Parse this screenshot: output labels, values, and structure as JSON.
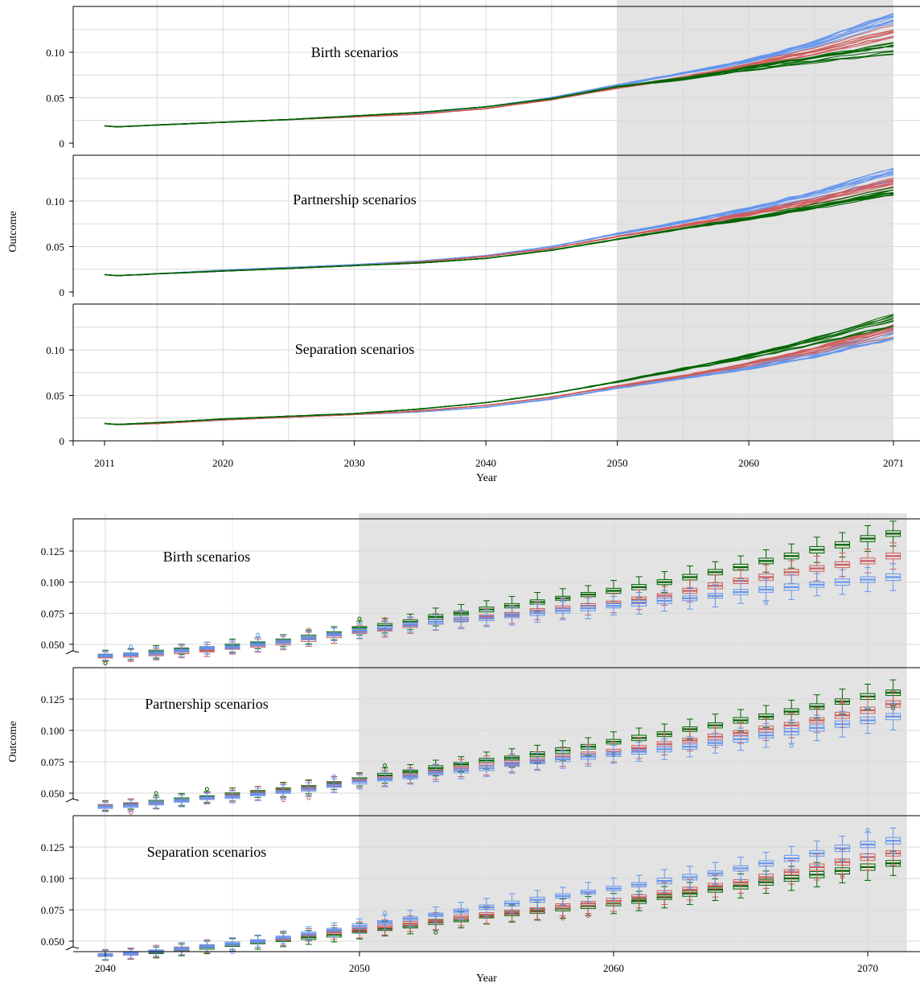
{
  "chart_data": [
    {
      "type": "line",
      "xlabel": "Year",
      "ylabel": "Outcome",
      "xlim": [
        2011,
        2071
      ],
      "x_ticks": [
        "2011",
        "2020",
        "2030",
        "2040",
        "2050",
        "2060",
        "2071"
      ],
      "y_ticks": [
        "0",
        "0.05",
        "0.10"
      ],
      "ylim": [
        0,
        0.14
      ],
      "shaded_region": [
        2050,
        2071
      ],
      "series_colors": {
        "low": "#6495ED",
        "mid": "#CD5C5C",
        "high": "#006400"
      },
      "runs_per_series": 10,
      "panels": [
        {
          "title": "Birth scenarios",
          "x": [
            2011,
            2012,
            2015,
            2020,
            2025,
            2030,
            2035,
            2040,
            2045,
            2050,
            2055,
            2060,
            2065,
            2071
          ],
          "series": [
            {
              "color": "#6495ED",
              "values": [
                0.019,
                0.018,
                0.02,
                0.023,
                0.026,
                0.029,
                0.033,
                0.04,
                0.05,
                0.064,
                0.077,
                0.091,
                0.11,
                0.14
              ]
            },
            {
              "color": "#CD5C5C",
              "values": [
                0.019,
                0.018,
                0.02,
                0.023,
                0.026,
                0.029,
                0.032,
                0.038,
                0.048,
                0.061,
                0.072,
                0.086,
                0.101,
                0.123
              ]
            },
            {
              "color": "#006400",
              "values": [
                0.019,
                0.018,
                0.02,
                0.023,
                0.026,
                0.03,
                0.034,
                0.04,
                0.049,
                0.062,
                0.071,
                0.082,
                0.092,
                0.104
              ]
            }
          ]
        },
        {
          "title": "Partnership scenarios",
          "x": [
            2011,
            2012,
            2015,
            2020,
            2025,
            2030,
            2035,
            2040,
            2045,
            2050,
            2055,
            2060,
            2065,
            2071
          ],
          "series": [
            {
              "color": "#6495ED",
              "values": [
                0.019,
                0.018,
                0.02,
                0.024,
                0.027,
                0.03,
                0.034,
                0.04,
                0.05,
                0.064,
                0.077,
                0.091,
                0.107,
                0.13
              ]
            },
            {
              "color": "#CD5C5C",
              "values": [
                0.019,
                0.018,
                0.02,
                0.023,
                0.026,
                0.029,
                0.033,
                0.039,
                0.048,
                0.061,
                0.073,
                0.086,
                0.1,
                0.121
              ]
            },
            {
              "color": "#006400",
              "values": [
                0.019,
                0.018,
                0.02,
                0.023,
                0.026,
                0.029,
                0.032,
                0.037,
                0.046,
                0.058,
                0.07,
                0.081,
                0.094,
                0.111
              ]
            }
          ]
        },
        {
          "title": "Separation scenarios",
          "x": [
            2011,
            2012,
            2015,
            2020,
            2025,
            2030,
            2035,
            2040,
            2045,
            2050,
            2055,
            2060,
            2065,
            2071
          ],
          "series": [
            {
              "color": "#6495ED",
              "values": [
                0.019,
                0.018,
                0.019,
                0.023,
                0.026,
                0.029,
                0.032,
                0.037,
                0.046,
                0.058,
                0.069,
                0.08,
                0.094,
                0.116
              ]
            },
            {
              "color": "#CD5C5C",
              "values": [
                0.019,
                0.018,
                0.019,
                0.023,
                0.026,
                0.029,
                0.033,
                0.039,
                0.048,
                0.06,
                0.071,
                0.084,
                0.099,
                0.121
              ]
            },
            {
              "color": "#006400",
              "values": [
                0.019,
                0.018,
                0.02,
                0.024,
                0.027,
                0.03,
                0.035,
                0.042,
                0.052,
                0.065,
                0.079,
                0.093,
                0.11,
                0.133
              ]
            }
          ]
        }
      ]
    },
    {
      "type": "box",
      "xlabel": "Year",
      "ylabel": "Outcome",
      "xlim": [
        2040,
        2071
      ],
      "x_ticks": [
        "2040",
        "2050",
        "2060",
        "2070"
      ],
      "y_ticks": [
        "0.050",
        "0.075",
        "0.100",
        "0.125"
      ],
      "ylim": [
        0.045,
        0.145
      ],
      "axis_break": true,
      "shaded_region": [
        2050,
        2071
      ],
      "years": [
        2040,
        2041,
        2042,
        2043,
        2044,
        2045,
        2046,
        2047,
        2048,
        2049,
        2050,
        2051,
        2052,
        2053,
        2054,
        2055,
        2056,
        2057,
        2058,
        2059,
        2060,
        2061,
        2062,
        2063,
        2064,
        2065,
        2066,
        2067,
        2068,
        2069,
        2070,
        2071
      ],
      "panels": [
        {
          "title": "Birth scenarios",
          "series": [
            {
              "color": "#006400",
              "medians": [
                0.041,
                0.042,
                0.044,
                0.046,
                0.047,
                0.049,
                0.051,
                0.053,
                0.056,
                0.059,
                0.063,
                0.065,
                0.068,
                0.072,
                0.075,
                0.078,
                0.081,
                0.084,
                0.087,
                0.09,
                0.093,
                0.096,
                0.1,
                0.104,
                0.108,
                0.112,
                0.117,
                0.121,
                0.126,
                0.13,
                0.135,
                0.139
              ]
            },
            {
              "color": "#CD5C5C",
              "medians": [
                0.04,
                0.041,
                0.042,
                0.044,
                0.045,
                0.047,
                0.049,
                0.051,
                0.054,
                0.057,
                0.06,
                0.062,
                0.065,
                0.068,
                0.07,
                0.072,
                0.074,
                0.077,
                0.079,
                0.081,
                0.083,
                0.086,
                0.089,
                0.093,
                0.097,
                0.101,
                0.104,
                0.108,
                0.111,
                0.114,
                0.117,
                0.121
              ]
            },
            {
              "color": "#6495ED",
              "medians": [
                0.041,
                0.042,
                0.043,
                0.045,
                0.047,
                0.048,
                0.05,
                0.052,
                0.055,
                0.058,
                0.061,
                0.063,
                0.066,
                0.068,
                0.07,
                0.071,
                0.073,
                0.075,
                0.077,
                0.079,
                0.081,
                0.083,
                0.085,
                0.087,
                0.089,
                0.092,
                0.094,
                0.096,
                0.098,
                0.1,
                0.102,
                0.104
              ]
            }
          ]
        },
        {
          "title": "Partnership scenarios",
          "series": [
            {
              "color": "#006400",
              "medians": [
                0.04,
                0.041,
                0.043,
                0.045,
                0.047,
                0.049,
                0.051,
                0.053,
                0.055,
                0.058,
                0.061,
                0.064,
                0.067,
                0.07,
                0.073,
                0.076,
                0.078,
                0.081,
                0.084,
                0.087,
                0.091,
                0.094,
                0.097,
                0.101,
                0.104,
                0.108,
                0.111,
                0.115,
                0.119,
                0.123,
                0.127,
                0.13
              ]
            },
            {
              "color": "#CD5C5C",
              "medians": [
                0.04,
                0.041,
                0.042,
                0.044,
                0.046,
                0.048,
                0.05,
                0.052,
                0.054,
                0.057,
                0.06,
                0.062,
                0.064,
                0.067,
                0.07,
                0.072,
                0.074,
                0.076,
                0.079,
                0.081,
                0.083,
                0.086,
                0.089,
                0.092,
                0.095,
                0.098,
                0.101,
                0.104,
                0.108,
                0.112,
                0.116,
                0.121
              ]
            },
            {
              "color": "#6495ED",
              "medians": [
                0.039,
                0.04,
                0.042,
                0.044,
                0.046,
                0.047,
                0.049,
                0.051,
                0.053,
                0.056,
                0.059,
                0.061,
                0.063,
                0.066,
                0.068,
                0.07,
                0.073,
                0.075,
                0.077,
                0.079,
                0.081,
                0.083,
                0.085,
                0.087,
                0.09,
                0.093,
                0.096,
                0.099,
                0.102,
                0.105,
                0.108,
                0.111
              ]
            }
          ]
        },
        {
          "title": "Separation scenarios",
          "series": [
            {
              "color": "#006400",
              "medians": [
                0.039,
                0.04,
                0.041,
                0.043,
                0.045,
                0.047,
                0.049,
                0.051,
                0.053,
                0.055,
                0.058,
                0.06,
                0.062,
                0.065,
                0.067,
                0.07,
                0.072,
                0.074,
                0.076,
                0.078,
                0.08,
                0.082,
                0.085,
                0.088,
                0.091,
                0.094,
                0.097,
                0.1,
                0.103,
                0.106,
                0.109,
                0.112
              ]
            },
            {
              "color": "#CD5C5C",
              "medians": [
                0.039,
                0.04,
                0.042,
                0.044,
                0.046,
                0.048,
                0.05,
                0.052,
                0.055,
                0.057,
                0.059,
                0.061,
                0.064,
                0.066,
                0.069,
                0.071,
                0.073,
                0.075,
                0.078,
                0.08,
                0.082,
                0.085,
                0.088,
                0.091,
                0.094,
                0.097,
                0.101,
                0.105,
                0.109,
                0.113,
                0.117,
                0.12
              ]
            },
            {
              "color": "#6495ED",
              "medians": [
                0.039,
                0.04,
                0.042,
                0.044,
                0.046,
                0.048,
                0.05,
                0.053,
                0.056,
                0.059,
                0.062,
                0.065,
                0.068,
                0.071,
                0.074,
                0.077,
                0.08,
                0.083,
                0.086,
                0.089,
                0.092,
                0.095,
                0.098,
                0.101,
                0.104,
                0.108,
                0.112,
                0.116,
                0.12,
                0.124,
                0.127,
                0.13
              ]
            }
          ]
        }
      ]
    }
  ]
}
